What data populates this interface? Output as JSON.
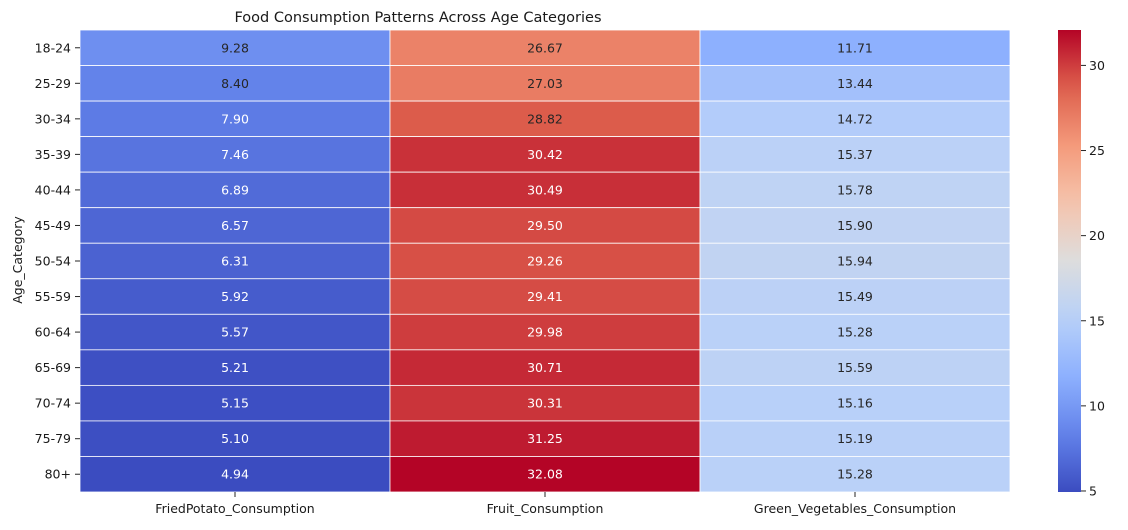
{
  "chart_data": {
    "type": "heatmap",
    "title": "Food Consumption Patterns Across Age Categories",
    "ylabel": "Age_Category",
    "xlabel": "",
    "rows": [
      "18-24",
      "25-29",
      "30-34",
      "35-39",
      "40-44",
      "45-49",
      "50-54",
      "55-59",
      "60-64",
      "65-69",
      "70-74",
      "75-79",
      "80+"
    ],
    "columns": [
      "FriedPotato_Consumption",
      "Fruit_Consumption",
      "Green_Vegetables_Consumption"
    ],
    "values": [
      [
        9.28,
        26.67,
        11.71
      ],
      [
        8.4,
        27.03,
        13.44
      ],
      [
        7.9,
        28.82,
        14.72
      ],
      [
        7.46,
        30.42,
        15.37
      ],
      [
        6.89,
        30.49,
        15.78
      ],
      [
        6.57,
        29.5,
        15.9
      ],
      [
        6.31,
        29.26,
        15.94
      ],
      [
        5.92,
        29.41,
        15.49
      ],
      [
        5.57,
        29.98,
        15.28
      ],
      [
        5.21,
        30.71,
        15.59
      ],
      [
        5.15,
        30.31,
        15.16
      ],
      [
        5.1,
        31.25,
        15.19
      ],
      [
        4.94,
        32.08,
        15.28
      ]
    ],
    "colormap": "coolwarm",
    "colorbar": {
      "min": 4.94,
      "max": 32.08,
      "ticks": [
        5,
        10,
        15,
        20,
        25,
        30
      ]
    },
    "annotations": true,
    "grid": false,
    "colors": {
      "low": "#3b4cc0",
      "mid": "#dddddd",
      "high": "#b40426",
      "cell_border": "#ffffff"
    }
  }
}
